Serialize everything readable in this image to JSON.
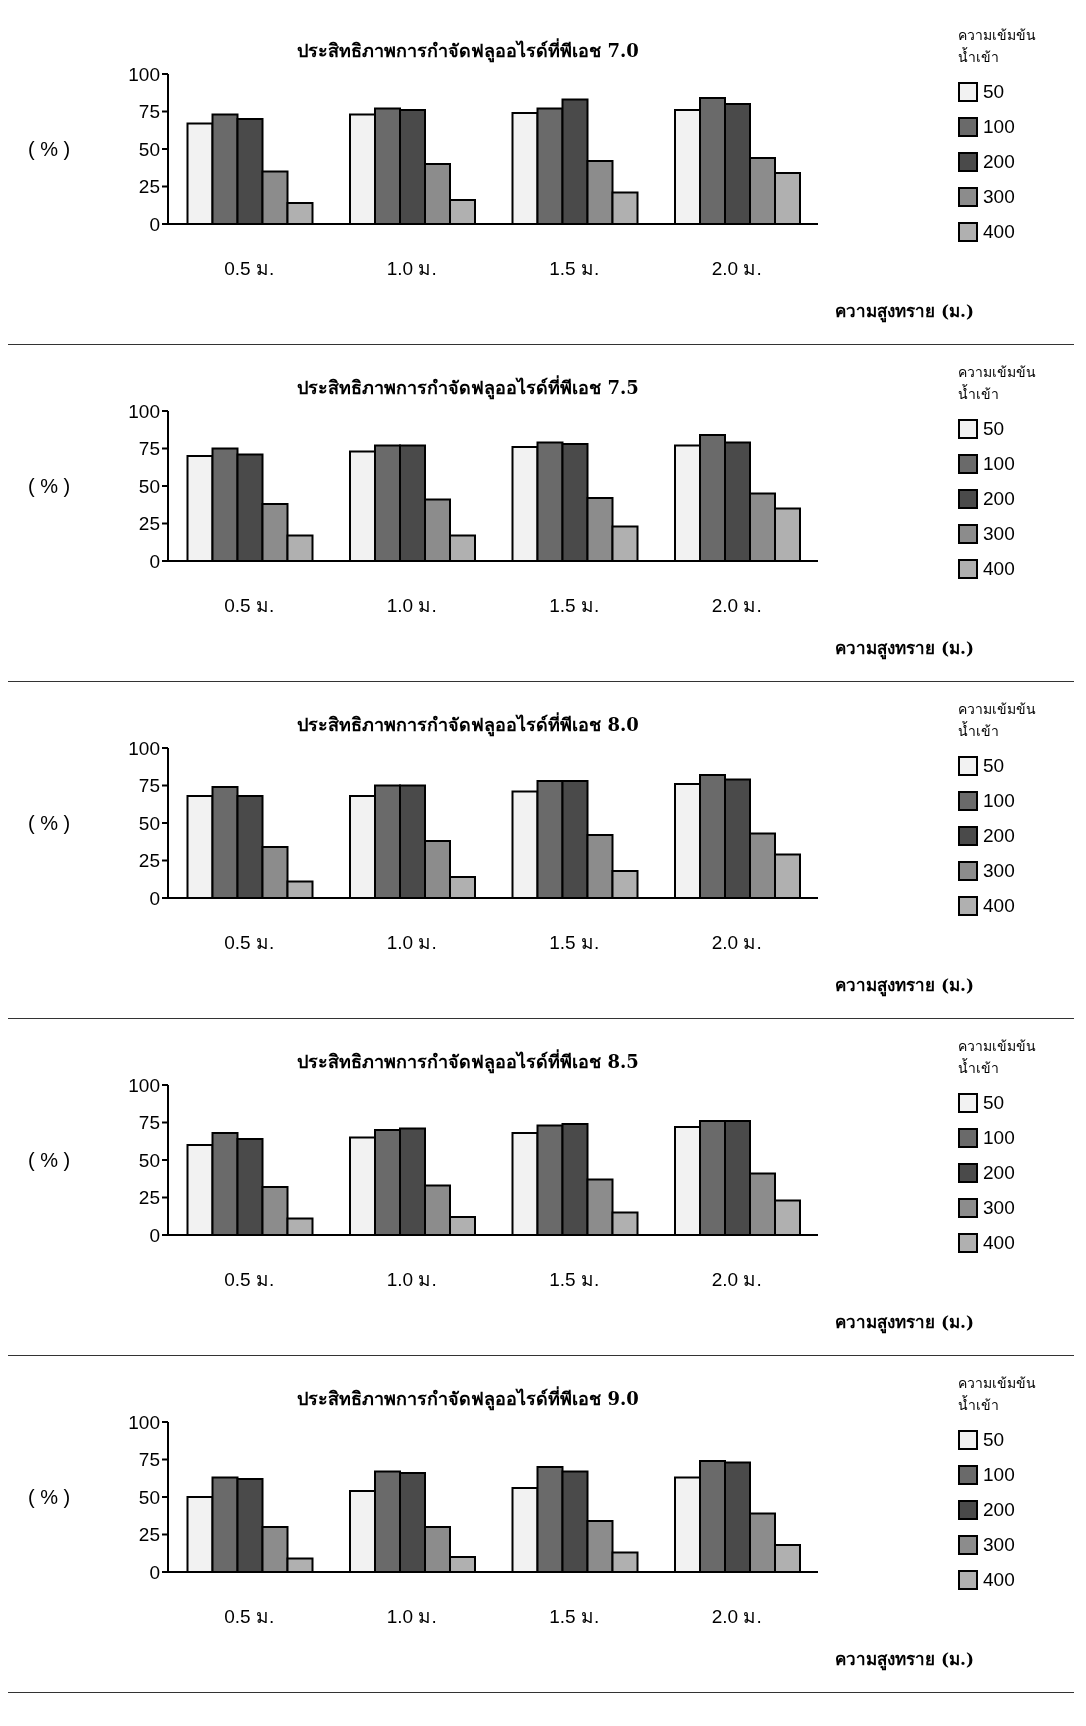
{
  "chart_data": [
    {
      "type": "bar",
      "title": "ประสิทธิภาพการกำจัดฟลูออไรด์ที่พีเอช 7.0",
      "xlabel": "ความสูงทราย (ม.)",
      "ylabel": "( % )",
      "legend_title": "ความเข้มข้น น้ำเข้า",
      "categories": [
        "0.5 ม.",
        "1.0 ม.",
        "1.5 ม.",
        "2.0 ม."
      ],
      "ylim": [
        0,
        100
      ],
      "yticks": [
        0,
        25,
        50,
        75,
        100
      ],
      "grid": false,
      "legend": "right",
      "series": [
        {
          "name": "50",
          "color": "#f2f2f2",
          "values": [
            67,
            73,
            74,
            76
          ]
        },
        {
          "name": "100",
          "color": "#6a6a6a",
          "values": [
            73,
            77,
            77,
            84
          ]
        },
        {
          "name": "200",
          "color": "#4a4a4a",
          "values": [
            70,
            76,
            83,
            80
          ]
        },
        {
          "name": "300",
          "color": "#8c8c8c",
          "values": [
            35,
            40,
            42,
            44
          ]
        },
        {
          "name": "400",
          "color": "#b0b0b0",
          "values": [
            14,
            16,
            21,
            34
          ]
        }
      ]
    },
    {
      "type": "bar",
      "title": "ประสิทธิภาพการกำจัดฟลูออไรด์ที่พีเอช 7.5",
      "xlabel": "ความสูงทราย (ม.)",
      "ylabel": "( % )",
      "legend_title": "ความเข้มข้น น้ำเข้า",
      "categories": [
        "0.5 ม.",
        "1.0 ม.",
        "1.5 ม.",
        "2.0 ม."
      ],
      "ylim": [
        0,
        100
      ],
      "yticks": [
        0,
        25,
        50,
        75,
        100
      ],
      "grid": false,
      "legend": "right",
      "series": [
        {
          "name": "50",
          "color": "#f2f2f2",
          "values": [
            70,
            73,
            76,
            77
          ]
        },
        {
          "name": "100",
          "color": "#6a6a6a",
          "values": [
            75,
            77,
            79,
            84
          ]
        },
        {
          "name": "200",
          "color": "#4a4a4a",
          "values": [
            71,
            77,
            78,
            79
          ]
        },
        {
          "name": "300",
          "color": "#8c8c8c",
          "values": [
            38,
            41,
            42,
            45
          ]
        },
        {
          "name": "400",
          "color": "#b0b0b0",
          "values": [
            17,
            17,
            23,
            35
          ]
        }
      ]
    },
    {
      "type": "bar",
      "title": "ประสิทธิภาพการกำจัดฟลูออไรด์ที่พีเอช 8.0",
      "xlabel": "ความสูงทราย (ม.)",
      "ylabel": "( % )",
      "legend_title": "ความเข้มข้น น้ำเข้า",
      "categories": [
        "0.5 ม.",
        "1.0 ม.",
        "1.5 ม.",
        "2.0 ม."
      ],
      "ylim": [
        0,
        100
      ],
      "yticks": [
        0,
        25,
        50,
        75,
        100
      ],
      "grid": false,
      "legend": "right",
      "series": [
        {
          "name": "50",
          "color": "#f2f2f2",
          "values": [
            68,
            68,
            71,
            76
          ]
        },
        {
          "name": "100",
          "color": "#6a6a6a",
          "values": [
            74,
            75,
            78,
            82
          ]
        },
        {
          "name": "200",
          "color": "#4a4a4a",
          "values": [
            68,
            75,
            78,
            79
          ]
        },
        {
          "name": "300",
          "color": "#8c8c8c",
          "values": [
            34,
            38,
            42,
            43
          ]
        },
        {
          "name": "400",
          "color": "#b0b0b0",
          "values": [
            11,
            14,
            18,
            29
          ]
        }
      ]
    },
    {
      "type": "bar",
      "title": "ประสิทธิภาพการกำจัดฟลูออไรด์ที่พีเอช 8.5",
      "xlabel": "ความสูงทราย (ม.)",
      "ylabel": "( % )",
      "legend_title": "ความเข้มข้น น้ำเข้า",
      "categories": [
        "0.5 ม.",
        "1.0 ม.",
        "1.5 ม.",
        "2.0 ม."
      ],
      "ylim": [
        0,
        100
      ],
      "yticks": [
        0,
        25,
        50,
        75,
        100
      ],
      "grid": false,
      "legend": "right",
      "series": [
        {
          "name": "50",
          "color": "#f2f2f2",
          "values": [
            60,
            65,
            68,
            72
          ]
        },
        {
          "name": "100",
          "color": "#6a6a6a",
          "values": [
            68,
            70,
            73,
            76
          ]
        },
        {
          "name": "200",
          "color": "#4a4a4a",
          "values": [
            64,
            71,
            74,
            76
          ]
        },
        {
          "name": "300",
          "color": "#8c8c8c",
          "values": [
            32,
            33,
            37,
            41
          ]
        },
        {
          "name": "400",
          "color": "#b0b0b0",
          "values": [
            11,
            12,
            15,
            23
          ]
        }
      ]
    },
    {
      "type": "bar",
      "title": "ประสิทธิภาพการกำจัดฟลูออไรด์ที่พีเอช 9.0",
      "xlabel": "ความสูงทราย (ม.)",
      "ylabel": "( % )",
      "legend_title": "ความเข้มข้น น้ำเข้า",
      "categories": [
        "0.5 ม.",
        "1.0 ม.",
        "1.5 ม.",
        "2.0 ม."
      ],
      "ylim": [
        0,
        100
      ],
      "yticks": [
        0,
        25,
        50,
        75,
        100
      ],
      "grid": false,
      "legend": "right",
      "series": [
        {
          "name": "50",
          "color": "#f2f2f2",
          "values": [
            50,
            54,
            56,
            63
          ]
        },
        {
          "name": "100",
          "color": "#6a6a6a",
          "values": [
            63,
            67,
            70,
            74
          ]
        },
        {
          "name": "200",
          "color": "#4a4a4a",
          "values": [
            62,
            66,
            67,
            73
          ]
        },
        {
          "name": "300",
          "color": "#8c8c8c",
          "values": [
            30,
            30,
            34,
            39
          ]
        },
        {
          "name": "400",
          "color": "#b0b0b0",
          "values": [
            9,
            10,
            13,
            18
          ]
        }
      ]
    }
  ]
}
